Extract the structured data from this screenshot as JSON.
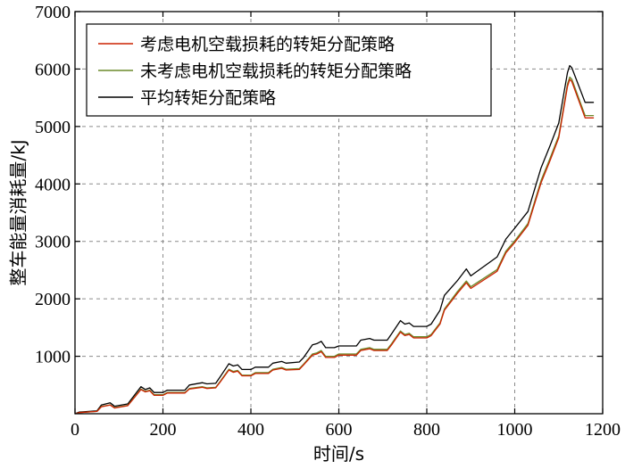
{
  "chart_data": {
    "type": "line",
    "xlabel": "时间/s",
    "ylabel": "整车能量消耗量/kJ",
    "xlim": [
      0,
      1200
    ],
    "ylim": [
      0,
      7000
    ],
    "xticks": [
      0,
      200,
      400,
      600,
      800,
      1000,
      1200
    ],
    "yticks": [
      1000,
      2000,
      3000,
      4000,
      5000,
      6000,
      7000
    ],
    "grid": true,
    "legend_position": "top-left",
    "series": [
      {
        "name": "考虑电机空载损耗的转矩分配策略",
        "color": "#cc2200",
        "points": [
          [
            0,
            0
          ],
          [
            10,
            20
          ],
          [
            50,
            40
          ],
          [
            60,
            120
          ],
          [
            80,
            150
          ],
          [
            90,
            100
          ],
          [
            120,
            140
          ],
          [
            150,
            420
          ],
          [
            160,
            380
          ],
          [
            170,
            400
          ],
          [
            180,
            320
          ],
          [
            200,
            320
          ],
          [
            210,
            360
          ],
          [
            250,
            360
          ],
          [
            260,
            430
          ],
          [
            290,
            460
          ],
          [
            300,
            440
          ],
          [
            320,
            450
          ],
          [
            330,
            550
          ],
          [
            350,
            760
          ],
          [
            360,
            720
          ],
          [
            370,
            740
          ],
          [
            380,
            660
          ],
          [
            400,
            660
          ],
          [
            410,
            700
          ],
          [
            440,
            700
          ],
          [
            450,
            760
          ],
          [
            470,
            790
          ],
          [
            480,
            760
          ],
          [
            510,
            770
          ],
          [
            520,
            850
          ],
          [
            540,
            1020
          ],
          [
            550,
            1040
          ],
          [
            560,
            1080
          ],
          [
            570,
            980
          ],
          [
            590,
            980
          ],
          [
            600,
            1020
          ],
          [
            640,
            1020
          ],
          [
            650,
            1100
          ],
          [
            670,
            1130
          ],
          [
            680,
            1100
          ],
          [
            710,
            1100
          ],
          [
            720,
            1200
          ],
          [
            740,
            1420
          ],
          [
            750,
            1360
          ],
          [
            760,
            1380
          ],
          [
            770,
            1320
          ],
          [
            800,
            1320
          ],
          [
            810,
            1360
          ],
          [
            830,
            1560
          ],
          [
            840,
            1800
          ],
          [
            870,
            2100
          ],
          [
            890,
            2280
          ],
          [
            900,
            2180
          ],
          [
            960,
            2480
          ],
          [
            980,
            2800
          ],
          [
            1000,
            2980
          ],
          [
            1030,
            3280
          ],
          [
            1060,
            4020
          ],
          [
            1080,
            4400
          ],
          [
            1100,
            4800
          ],
          [
            1120,
            5700
          ],
          [
            1125,
            5820
          ],
          [
            1130,
            5780
          ],
          [
            1160,
            5150
          ],
          [
            1180,
            5150
          ]
        ]
      },
      {
        "name": "未考虑电机空载损耗的转矩分配策略",
        "color": "#6b8a2a",
        "points": [
          [
            0,
            0
          ],
          [
            10,
            20
          ],
          [
            50,
            40
          ],
          [
            60,
            125
          ],
          [
            80,
            155
          ],
          [
            90,
            105
          ],
          [
            120,
            145
          ],
          [
            150,
            430
          ],
          [
            160,
            390
          ],
          [
            170,
            410
          ],
          [
            180,
            330
          ],
          [
            200,
            330
          ],
          [
            210,
            370
          ],
          [
            250,
            370
          ],
          [
            260,
            440
          ],
          [
            290,
            470
          ],
          [
            300,
            450
          ],
          [
            320,
            460
          ],
          [
            330,
            560
          ],
          [
            350,
            775
          ],
          [
            360,
            735
          ],
          [
            370,
            755
          ],
          [
            380,
            670
          ],
          [
            400,
            670
          ],
          [
            410,
            715
          ],
          [
            440,
            715
          ],
          [
            450,
            775
          ],
          [
            470,
            805
          ],
          [
            480,
            775
          ],
          [
            510,
            785
          ],
          [
            520,
            865
          ],
          [
            540,
            1040
          ],
          [
            550,
            1060
          ],
          [
            560,
            1100
          ],
          [
            570,
            1000
          ],
          [
            590,
            1000
          ],
          [
            600,
            1040
          ],
          [
            640,
            1040
          ],
          [
            650,
            1120
          ],
          [
            670,
            1150
          ],
          [
            680,
            1120
          ],
          [
            710,
            1120
          ],
          [
            720,
            1220
          ],
          [
            740,
            1440
          ],
          [
            750,
            1380
          ],
          [
            760,
            1400
          ],
          [
            770,
            1340
          ],
          [
            800,
            1340
          ],
          [
            810,
            1380
          ],
          [
            830,
            1580
          ],
          [
            840,
            1820
          ],
          [
            870,
            2130
          ],
          [
            890,
            2310
          ],
          [
            900,
            2210
          ],
          [
            960,
            2510
          ],
          [
            980,
            2830
          ],
          [
            1000,
            3010
          ],
          [
            1030,
            3310
          ],
          [
            1060,
            4060
          ],
          [
            1080,
            4440
          ],
          [
            1100,
            4840
          ],
          [
            1120,
            5740
          ],
          [
            1125,
            5860
          ],
          [
            1130,
            5820
          ],
          [
            1160,
            5190
          ],
          [
            1180,
            5190
          ]
        ]
      },
      {
        "name": "平均转矩分配策略",
        "color": "#000000",
        "points": [
          [
            0,
            0
          ],
          [
            10,
            30
          ],
          [
            50,
            50
          ],
          [
            60,
            150
          ],
          [
            80,
            190
          ],
          [
            90,
            130
          ],
          [
            120,
            170
          ],
          [
            150,
            470
          ],
          [
            160,
            420
          ],
          [
            170,
            450
          ],
          [
            180,
            370
          ],
          [
            200,
            370
          ],
          [
            210,
            410
          ],
          [
            250,
            410
          ],
          [
            260,
            500
          ],
          [
            290,
            540
          ],
          [
            300,
            520
          ],
          [
            320,
            530
          ],
          [
            330,
            640
          ],
          [
            350,
            870
          ],
          [
            360,
            830
          ],
          [
            370,
            850
          ],
          [
            380,
            770
          ],
          [
            400,
            770
          ],
          [
            410,
            810
          ],
          [
            440,
            810
          ],
          [
            450,
            880
          ],
          [
            470,
            910
          ],
          [
            480,
            880
          ],
          [
            510,
            900
          ],
          [
            520,
            980
          ],
          [
            540,
            1200
          ],
          [
            550,
            1220
          ],
          [
            560,
            1260
          ],
          [
            570,
            1150
          ],
          [
            590,
            1150
          ],
          [
            600,
            1180
          ],
          [
            640,
            1180
          ],
          [
            650,
            1280
          ],
          [
            670,
            1310
          ],
          [
            680,
            1280
          ],
          [
            710,
            1280
          ],
          [
            720,
            1390
          ],
          [
            740,
            1620
          ],
          [
            750,
            1560
          ],
          [
            760,
            1580
          ],
          [
            770,
            1520
          ],
          [
            800,
            1520
          ],
          [
            810,
            1560
          ],
          [
            830,
            1800
          ],
          [
            840,
            2060
          ],
          [
            870,
            2320
          ],
          [
            890,
            2520
          ],
          [
            900,
            2400
          ],
          [
            960,
            2730
          ],
          [
            980,
            3040
          ],
          [
            1000,
            3230
          ],
          [
            1030,
            3520
          ],
          [
            1060,
            4280
          ],
          [
            1080,
            4660
          ],
          [
            1100,
            5060
          ],
          [
            1120,
            5940
          ],
          [
            1125,
            6060
          ],
          [
            1130,
            6020
          ],
          [
            1160,
            5420
          ],
          [
            1180,
            5420
          ]
        ]
      }
    ]
  }
}
